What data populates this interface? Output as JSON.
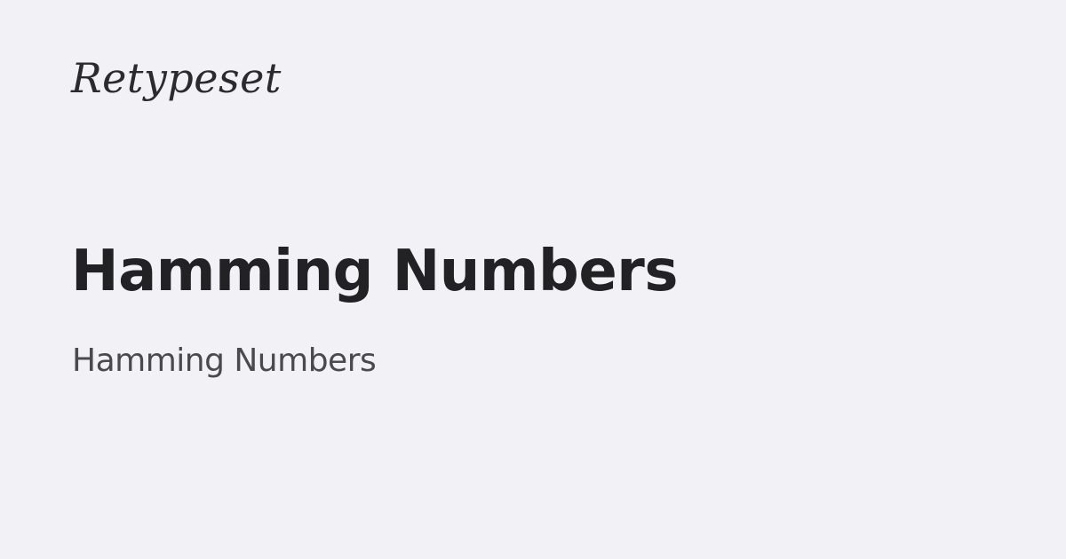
{
  "brand": {
    "logo_text": "Retypeset"
  },
  "article": {
    "title": "Hamming Numbers",
    "subtitle": "Hamming Numbers"
  },
  "colors": {
    "background": "#f2f1f6",
    "title": "#222225",
    "subtitle": "#4a4a4e",
    "logo": "#2b2b2e"
  }
}
